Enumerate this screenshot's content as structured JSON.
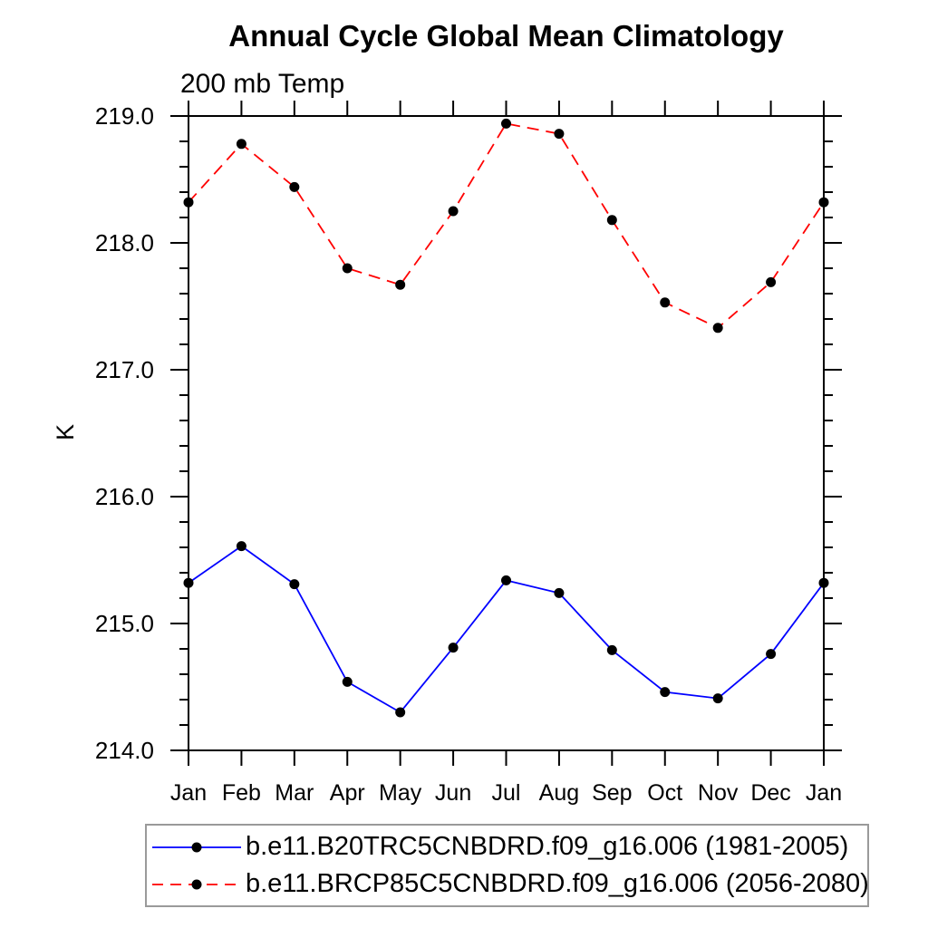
{
  "chart_data": {
    "type": "line",
    "title": "Annual Cycle Global Mean Climatology",
    "subtitle": "200 mb Temp",
    "xlabel": "",
    "ylabel": "K",
    "categories": [
      "Jan",
      "Feb",
      "Mar",
      "Apr",
      "May",
      "Jun",
      "Jul",
      "Aug",
      "Sep",
      "Oct",
      "Nov",
      "Dec",
      "Jan"
    ],
    "ylim": [
      214.0,
      219.0
    ],
    "y_major_ticks": [
      214.0,
      215.0,
      216.0,
      217.0,
      218.0,
      219.0
    ],
    "y_tick_labels": [
      "214.0",
      "215.0",
      "216.0",
      "217.0",
      "218.0",
      "219.0"
    ],
    "y_minor_step": 0.2,
    "grid": false,
    "legend_position": "bottom",
    "axis_color": "#000000",
    "marker": "filled-circle",
    "series": [
      {
        "name": "b.e11.B20TRC5CNBDRD.f09_g16.006 (1981-2005)",
        "color": "#0000ff",
        "line_style": "solid",
        "marker_color": "#000000",
        "values": [
          215.32,
          215.61,
          215.31,
          214.54,
          214.3,
          214.81,
          215.34,
          215.24,
          214.79,
          214.46,
          214.41,
          214.76,
          215.32
        ]
      },
      {
        "name": "b.e11.BRCP85C5CNBDRD.f09_g16.006 (2056-2080)",
        "color": "#ff0000",
        "line_style": "dashed",
        "marker_color": "#000000",
        "values": [
          218.32,
          218.78,
          218.44,
          217.8,
          217.67,
          218.25,
          218.94,
          218.86,
          218.18,
          217.53,
          217.33,
          217.69,
          218.32
        ]
      }
    ]
  }
}
